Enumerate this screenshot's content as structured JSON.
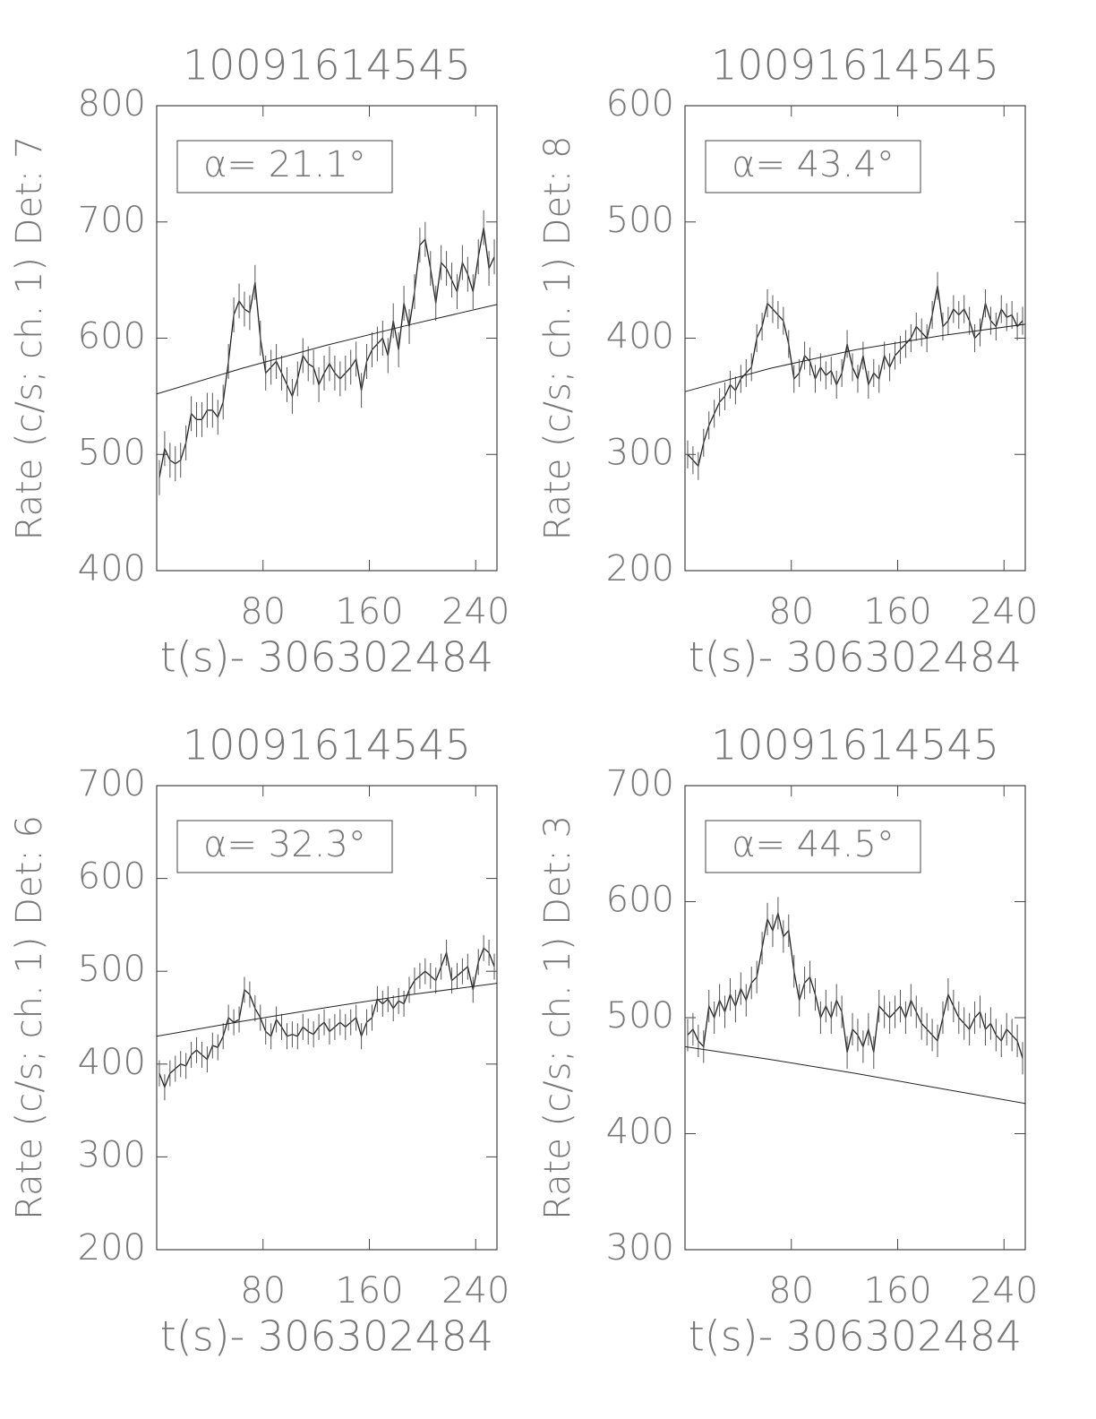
{
  "chart_data": [
    {
      "type": "line",
      "title": "10091614545",
      "annotation": "α= 21.1°",
      "xlabel": "t(s)- 306302484",
      "ylabel": "Rate (c/s; ch. 1) Det: 7",
      "xlim": [
        0,
        256
      ],
      "xticks": [
        80,
        160,
        240
      ],
      "ylim": [
        400,
        800
      ],
      "yticks": [
        400,
        500,
        600,
        700,
        800
      ],
      "color": "#222222",
      "series": [
        {
          "x": [
            2,
            6,
            10,
            14,
            18,
            22,
            26,
            30,
            34,
            38,
            42,
            46,
            50,
            54,
            58,
            62,
            66,
            70,
            74,
            78,
            82,
            86,
            90,
            94,
            98,
            102,
            106,
            110,
            114,
            118,
            122,
            126,
            130,
            134,
            138,
            142,
            146,
            150,
            154,
            158,
            162,
            166,
            170,
            174,
            178,
            182,
            186,
            190,
            194,
            198,
            202,
            206,
            210,
            214,
            218,
            222,
            226,
            230,
            234,
            238,
            242,
            246,
            250,
            254
          ],
          "values": [
            480,
            505,
            495,
            492,
            495,
            510,
            535,
            530,
            530,
            538,
            538,
            532,
            545,
            580,
            620,
            632,
            625,
            622,
            648,
            600,
            570,
            575,
            580,
            570,
            560,
            550,
            565,
            585,
            578,
            575,
            560,
            570,
            578,
            570,
            565,
            570,
            575,
            582,
            555,
            580,
            590,
            595,
            600,
            585,
            615,
            590,
            630,
            610,
            640,
            680,
            685,
            660,
            630,
            665,
            660,
            650,
            640,
            665,
            655,
            640,
            670,
            695,
            660,
            670
          ],
          "errors": [
            15,
            15,
            15,
            15,
            15,
            15,
            15,
            15,
            15,
            15,
            15,
            15,
            15,
            15,
            15,
            15,
            15,
            15,
            15,
            15,
            15,
            15,
            15,
            15,
            15,
            15,
            15,
            15,
            15,
            15,
            15,
            15,
            15,
            15,
            15,
            15,
            15,
            15,
            15,
            15,
            15,
            15,
            15,
            15,
            15,
            15,
            15,
            15,
            15,
            15,
            15,
            15,
            15,
            15,
            15,
            15,
            15,
            15,
            15,
            15,
            15,
            15,
            15,
            15
          ]
        },
        {
          "x": [
            0,
            64,
            128,
            192,
            256
          ],
          "values": [
            552,
            574,
            594,
            612,
            629
          ]
        }
      ]
    },
    {
      "type": "line",
      "title": "10091614545",
      "annotation": "α= 43.4°",
      "xlabel": "t(s)- 306302484",
      "ylabel": "Rate (c/s; ch. 1) Det: 8",
      "xlim": [
        0,
        256
      ],
      "xticks": [
        80,
        160,
        240
      ],
      "ylim": [
        200,
        600
      ],
      "yticks": [
        200,
        300,
        400,
        500,
        600
      ],
      "color": "#222222",
      "series": [
        {
          "x": [
            2,
            6,
            10,
            14,
            18,
            22,
            26,
            30,
            34,
            38,
            42,
            46,
            50,
            54,
            58,
            62,
            66,
            70,
            74,
            78,
            82,
            86,
            90,
            94,
            98,
            102,
            106,
            110,
            114,
            118,
            122,
            126,
            130,
            134,
            138,
            142,
            146,
            150,
            154,
            158,
            162,
            166,
            170,
            174,
            178,
            182,
            186,
            190,
            194,
            198,
            202,
            206,
            210,
            214,
            218,
            222,
            226,
            230,
            234,
            238,
            242,
            246,
            250,
            254
          ],
          "values": [
            300,
            295,
            290,
            310,
            325,
            335,
            345,
            350,
            360,
            355,
            365,
            370,
            375,
            400,
            410,
            430,
            425,
            420,
            415,
            395,
            365,
            370,
            385,
            380,
            365,
            375,
            368,
            372,
            360,
            370,
            395,
            375,
            365,
            385,
            360,
            370,
            365,
            385,
            375,
            385,
            390,
            395,
            400,
            410,
            405,
            400,
            420,
            445,
            410,
            415,
            425,
            420,
            425,
            415,
            400,
            405,
            430,
            415,
            410,
            425,
            418,
            420,
            410,
            415
          ],
          "errors": [
            12,
            12,
            12,
            12,
            12,
            12,
            12,
            12,
            12,
            12,
            12,
            12,
            12,
            12,
            12,
            12,
            12,
            12,
            12,
            12,
            12,
            12,
            12,
            12,
            12,
            12,
            12,
            12,
            12,
            12,
            12,
            12,
            12,
            12,
            12,
            12,
            12,
            12,
            12,
            12,
            12,
            12,
            12,
            12,
            12,
            12,
            12,
            12,
            12,
            12,
            12,
            12,
            12,
            12,
            12,
            12,
            12,
            12,
            12,
            12,
            12,
            12,
            12,
            12
          ]
        },
        {
          "x": [
            0,
            64,
            128,
            192,
            256
          ],
          "values": [
            354,
            374,
            390,
            402,
            412
          ]
        }
      ]
    },
    {
      "type": "line",
      "title": "10091614545",
      "annotation": "α= 32.3°",
      "xlabel": "t(s)- 306302484",
      "ylabel": "Rate (c/s; ch. 1) Det: 6",
      "xlim": [
        0,
        256
      ],
      "xticks": [
        80,
        160,
        240
      ],
      "ylim": [
        200,
        700
      ],
      "yticks": [
        200,
        300,
        400,
        500,
        600,
        700
      ],
      "color": "#222222",
      "series": [
        {
          "x": [
            2,
            6,
            10,
            14,
            18,
            22,
            26,
            30,
            34,
            38,
            42,
            46,
            50,
            54,
            58,
            62,
            66,
            70,
            74,
            78,
            82,
            86,
            90,
            94,
            98,
            102,
            106,
            110,
            114,
            118,
            122,
            126,
            130,
            134,
            138,
            142,
            146,
            150,
            154,
            158,
            162,
            166,
            170,
            174,
            178,
            182,
            186,
            190,
            194,
            198,
            202,
            206,
            210,
            214,
            218,
            222,
            226,
            230,
            234,
            238,
            242,
            246,
            250,
            254
          ],
          "values": [
            390,
            375,
            390,
            395,
            400,
            398,
            410,
            415,
            410,
            405,
            420,
            418,
            430,
            450,
            445,
            448,
            480,
            475,
            460,
            450,
            435,
            430,
            448,
            440,
            430,
            432,
            430,
            440,
            435,
            432,
            440,
            445,
            435,
            440,
            445,
            440,
            445,
            450,
            430,
            445,
            450,
            470,
            465,
            470,
            460,
            468,
            465,
            480,
            490,
            495,
            500,
            495,
            490,
            505,
            520,
            490,
            495,
            500,
            505,
            480,
            510,
            525,
            520,
            505
          ],
          "errors": [
            14,
            14,
            14,
            14,
            14,
            14,
            14,
            14,
            14,
            14,
            14,
            14,
            14,
            14,
            14,
            14,
            14,
            14,
            14,
            14,
            14,
            14,
            14,
            14,
            14,
            14,
            14,
            14,
            14,
            14,
            14,
            14,
            14,
            14,
            14,
            14,
            14,
            14,
            14,
            14,
            14,
            14,
            14,
            14,
            14,
            14,
            14,
            14,
            14,
            14,
            14,
            14,
            14,
            14,
            14,
            14,
            14,
            14,
            14,
            14,
            14,
            14,
            14,
            14
          ]
        },
        {
          "x": [
            0,
            64,
            128,
            192,
            256
          ],
          "values": [
            430,
            446,
            461,
            475,
            487
          ]
        }
      ]
    },
    {
      "type": "line",
      "title": "10091614545",
      "annotation": "α= 44.5°",
      "xlabel": "t(s)- 306302484",
      "ylabel": "Rate (c/s; ch. 1) Det: 3",
      "xlim": [
        0,
        256
      ],
      "xticks": [
        80,
        160,
        240
      ],
      "ylim": [
        300,
        700
      ],
      "yticks": [
        300,
        400,
        500,
        600,
        700
      ],
      "color": "#222222",
      "series": [
        {
          "x": [
            2,
            6,
            10,
            14,
            18,
            22,
            26,
            30,
            34,
            38,
            42,
            46,
            50,
            54,
            58,
            62,
            66,
            70,
            74,
            78,
            82,
            86,
            90,
            94,
            98,
            102,
            106,
            110,
            114,
            118,
            122,
            126,
            130,
            134,
            138,
            142,
            146,
            150,
            154,
            158,
            162,
            166,
            170,
            174,
            178,
            182,
            186,
            190,
            194,
            198,
            202,
            206,
            210,
            214,
            218,
            222,
            226,
            230,
            234,
            238,
            242,
            246,
            250,
            254
          ],
          "values": [
            485,
            490,
            480,
            475,
            510,
            500,
            515,
            505,
            520,
            510,
            525,
            515,
            530,
            535,
            560,
            585,
            575,
            590,
            570,
            575,
            540,
            515,
            530,
            535,
            520,
            500,
            510,
            500,
            515,
            505,
            470,
            490,
            485,
            475,
            490,
            470,
            510,
            505,
            500,
            505,
            510,
            500,
            515,
            505,
            495,
            490,
            485,
            480,
            500,
            520,
            510,
            500,
            495,
            490,
            500,
            505,
            490,
            495,
            485,
            480,
            490,
            485,
            480,
            465
          ],
          "errors": [
            14,
            14,
            14,
            14,
            14,
            14,
            14,
            14,
            14,
            14,
            14,
            14,
            14,
            14,
            14,
            14,
            14,
            14,
            14,
            14,
            14,
            14,
            14,
            14,
            14,
            14,
            14,
            14,
            14,
            14,
            14,
            14,
            14,
            14,
            14,
            14,
            14,
            14,
            14,
            14,
            14,
            14,
            14,
            14,
            14,
            14,
            14,
            14,
            14,
            14,
            14,
            14,
            14,
            14,
            14,
            14,
            14,
            14,
            14,
            14,
            14,
            14,
            14,
            14
          ]
        },
        {
          "x": [
            0,
            64,
            128,
            192,
            256
          ],
          "values": [
            475,
            464,
            452,
            439,
            426
          ]
        }
      ]
    }
  ]
}
